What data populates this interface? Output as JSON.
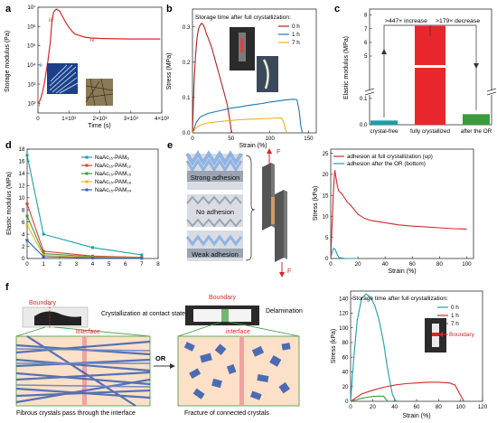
{
  "panel_letters": {
    "a": "a",
    "b": "b",
    "c": "c",
    "d": "d",
    "e": "e",
    "f": "f"
  },
  "chart_data": [
    {
      "id": "a",
      "type": "line",
      "xlabel": "Time (s)",
      "ylabel": "Storage modulus (Pa)",
      "x_ticks": [
        "0",
        "1×10³",
        "2×10³",
        "3×10³",
        "4×10³"
      ],
      "y_ticks": [
        "10²",
        "10³",
        "10⁴",
        "10⁵",
        "10⁶",
        "10⁷"
      ],
      "xlim": [
        0,
        4000
      ],
      "ylim_log10": [
        1.5,
        7
      ],
      "y_scale": "log",
      "color": "#d62728",
      "stage_labels": [
        "i",
        "ii",
        "iii",
        "iv"
      ],
      "x": [
        0,
        50,
        100,
        150,
        200,
        260,
        320,
        400,
        450,
        500,
        550,
        600,
        700,
        800,
        900,
        1000,
        1100,
        1200,
        1300,
        1500,
        1700,
        2000,
        2500,
        3000,
        3500,
        3950
      ],
      "y_log10": [
        2.0,
        2.1,
        2.3,
        2.6,
        3.0,
        3.6,
        4.2,
        5.2,
        6.2,
        6.7,
        6.85,
        6.9,
        6.8,
        6.5,
        6.2,
        5.95,
        5.75,
        5.6,
        5.55,
        5.45,
        5.4,
        5.38,
        5.36,
        5.35,
        5.35,
        5.35
      ]
    },
    {
      "id": "b",
      "type": "line",
      "title": "Storage time after full crystallization:",
      "xlabel": "Strain (%)",
      "ylabel": "Stress (MPa)",
      "x_ticks": [
        "0",
        "50",
        "100",
        "150"
      ],
      "y_ticks": [
        "0.0",
        "0.1",
        "0.2",
        "0.3"
      ],
      "xlim": [
        0,
        160
      ],
      "ylim": [
        0,
        0.35
      ],
      "legend_position": "top-right",
      "series": [
        {
          "name": "0 h",
          "color": "#b22222",
          "x": [
            0,
            2,
            4,
            6,
            8,
            10,
            12,
            14,
            16,
            18,
            20,
            25,
            30,
            35,
            40,
            45,
            48,
            50,
            51
          ],
          "y": [
            0,
            0.14,
            0.22,
            0.27,
            0.295,
            0.305,
            0.31,
            0.305,
            0.295,
            0.28,
            0.27,
            0.24,
            0.2,
            0.16,
            0.12,
            0.08,
            0.04,
            0.01,
            0
          ]
        },
        {
          "name": "1 h",
          "color": "#1f77b4",
          "x": [
            0,
            5,
            10,
            20,
            30,
            40,
            50,
            60,
            70,
            80,
            90,
            100,
            110,
            120,
            130,
            135,
            138,
            140,
            142
          ],
          "y": [
            0,
            0.03,
            0.045,
            0.055,
            0.06,
            0.065,
            0.07,
            0.073,
            0.077,
            0.08,
            0.083,
            0.087,
            0.09,
            0.093,
            0.095,
            0.094,
            0.06,
            0.02,
            0
          ]
        },
        {
          "name": "7 h",
          "color": "#f2b01e",
          "x": [
            0,
            5,
            10,
            20,
            30,
            40,
            50,
            60,
            70,
            80,
            90,
            100,
            110,
            115,
            118,
            120,
            122
          ],
          "y": [
            0,
            0.015,
            0.022,
            0.028,
            0.031,
            0.033,
            0.035,
            0.037,
            0.038,
            0.039,
            0.04,
            0.041,
            0.042,
            0.042,
            0.03,
            0.01,
            0
          ]
        }
      ]
    },
    {
      "id": "c",
      "type": "bar",
      "ylabel": "Elastic modulus (MPa)",
      "categories": [
        "crystal-free",
        "fully crystallized",
        "after the OR"
      ],
      "values": [
        0.016,
        7.2,
        0.04
      ],
      "colors": [
        "#1a9fa8",
        "#e8272c",
        "#3c9b3c"
      ],
      "error": [
        0.003,
        0.5,
        0.005
      ],
      "y_ticks_upper": [
        "5",
        "6",
        "7",
        "8"
      ],
      "y_ticks_lower": [
        "0.0",
        "0.1"
      ],
      "broken_axis": true,
      "annotations": [
        ">447× increase",
        ">179× decrease"
      ]
    },
    {
      "id": "d",
      "type": "line",
      "xlabel": "",
      "ylabel": "Elastic modulus (MPa)",
      "x_ticks": [
        "0",
        "1",
        "2",
        "3",
        "4",
        "5",
        "6",
        "7",
        "8"
      ],
      "y_ticks": [
        "0",
        "2",
        "4",
        "6",
        "8",
        "10",
        "12",
        "14",
        "16",
        "18"
      ],
      "xlim": [
        0,
        8
      ],
      "ylim": [
        0,
        18
      ],
      "legend_position": "top-right",
      "series": [
        {
          "name": "NaAc₁₅-PAM₆",
          "color": "#1a9fa8",
          "x": [
            0,
            1,
            4,
            7
          ],
          "y": [
            17.0,
            4.0,
            1.8,
            0.6
          ]
        },
        {
          "name": "NaAc₁₅-PAM₁₂",
          "color": "#e03a3a",
          "x": [
            0,
            1,
            4,
            7
          ],
          "y": [
            9.0,
            1.2,
            0.4,
            0.2
          ]
        },
        {
          "name": "NaAc₁₅-PAM₁₅",
          "color": "#3c9b3c",
          "x": [
            0,
            1,
            4,
            7
          ],
          "y": [
            7.0,
            0.8,
            0.3,
            0.15
          ]
        },
        {
          "name": "NaAc₁₅-PAM₁₈",
          "color": "#f2b01e",
          "x": [
            0,
            1,
            4,
            7
          ],
          "y": [
            5.5,
            0.5,
            0.2,
            0.1
          ]
        },
        {
          "name": "NaAc₁₅-PAM₂₄",
          "color": "#3a5fb0",
          "x": [
            0,
            1,
            4,
            7
          ],
          "y": [
            3.0,
            0.3,
            0.1,
            0.05
          ]
        }
      ]
    },
    {
      "id": "e",
      "type": "line",
      "xlabel": "Strain (%)",
      "ylabel": "Stress (kPa)",
      "x_ticks": [
        "0",
        "20",
        "40",
        "60",
        "80",
        "100"
      ],
      "y_ticks": [
        "0",
        "5",
        "10",
        "15",
        "20",
        "25"
      ],
      "xlim": [
        0,
        105
      ],
      "ylim": [
        0,
        26
      ],
      "legend_position": "top-left",
      "series": [
        {
          "name": "adhesion at full crystallization (up)",
          "color": "#d62728",
          "x": [
            0,
            1,
            2,
            3,
            4,
            5,
            6,
            8,
            10,
            12,
            15,
            20,
            25,
            30,
            40,
            50,
            60,
            70,
            80,
            90,
            100
          ],
          "y": [
            0,
            8,
            16,
            21,
            19,
            17,
            16,
            15.5,
            14.5,
            13.5,
            12.5,
            10.5,
            9.5,
            9,
            8.5,
            8,
            7.7,
            7.5,
            7.3,
            7.1,
            7.0
          ]
        },
        {
          "name": "adhesion after the OR (bottom)",
          "color": "#1a9fa8",
          "x": [
            0,
            0.5,
            1,
            2,
            3,
            4,
            5,
            6,
            8,
            10,
            15,
            20
          ],
          "y": [
            0,
            0.8,
            1.5,
            2.4,
            2.3,
            1.6,
            0.8,
            0.3,
            0.1,
            0.05,
            0,
            0
          ]
        }
      ]
    },
    {
      "id": "f",
      "type": "line",
      "title": "Storage time after full crystallization:",
      "xlabel": "Strain (%)",
      "ylabel": "Stress (kPa)",
      "x_ticks": [
        "0",
        "20",
        "40",
        "60",
        "80",
        "100",
        "120"
      ],
      "y_ticks": [
        "0",
        "20",
        "40",
        "60",
        "80",
        "100",
        "120",
        "140"
      ],
      "xlim": [
        0,
        120
      ],
      "ylim": [
        0,
        150
      ],
      "legend_position": "top-right",
      "series": [
        {
          "name": "0 h",
          "color": "#1a9fa8",
          "x": [
            0,
            3,
            6,
            10,
            14,
            18,
            22,
            26,
            30,
            33,
            36,
            38,
            40,
            42
          ],
          "y": [
            0,
            60,
            110,
            140,
            146,
            142,
            130,
            110,
            80,
            50,
            25,
            10,
            3,
            0
          ]
        },
        {
          "name": "1 h",
          "color": "#d62728",
          "x": [
            0,
            5,
            10,
            20,
            30,
            40,
            50,
            60,
            70,
            80,
            90,
            95,
            100,
            103
          ],
          "y": [
            0,
            5,
            10,
            15,
            19,
            22,
            24,
            25,
            26,
            26,
            25,
            22,
            8,
            0
          ]
        },
        {
          "name": "7 h",
          "color": "#3c9b3c",
          "x": [
            0,
            5,
            10,
            15,
            20,
            25,
            30,
            32,
            34
          ],
          "y": [
            0,
            2,
            4,
            5.5,
            6.5,
            7,
            7,
            3,
            0
          ]
        }
      ]
    }
  ],
  "panel_b": {
    "strain_label_inline": "50"
  },
  "panel_e": {
    "adhesion_labels": [
      "Strong adhesion",
      "No adhesion",
      "Weak adhesion"
    ],
    "force_label_top": "F",
    "force_label_bottom": "F"
  },
  "panel_f": {
    "boundary_label_1": "Boundary",
    "boundary_label_2": "Boundary",
    "boundary_label_inset": "Boundary",
    "state_label_left": "Crystallization at contact state",
    "state_label_right": "Delamination",
    "interface_label_left": "interface",
    "interface_label_right": "interface",
    "or_label": "OR",
    "caption_left": "Fibrous crystals pass through the interface",
    "caption_right": "Fracture of connected crystals"
  }
}
